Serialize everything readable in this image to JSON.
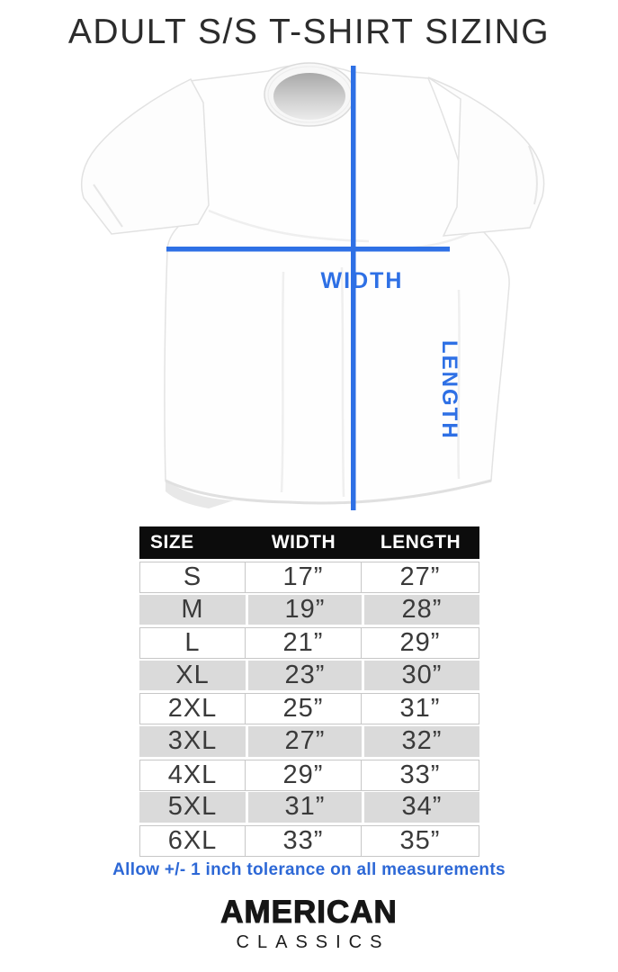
{
  "title": "ADULT S/S T-SHIRT SIZING",
  "diagram": {
    "width_label": "WIDTH",
    "length_label": "LENGTH"
  },
  "size_chart": {
    "columns": [
      "SIZE",
      "WIDTH",
      "LENGTH"
    ],
    "rows": [
      {
        "size": "S",
        "width": "17”",
        "length": "27”"
      },
      {
        "size": "M",
        "width": "19”",
        "length": "28”"
      },
      {
        "size": "L",
        "width": "21”",
        "length": "29”"
      },
      {
        "size": "XL",
        "width": "23”",
        "length": "30”"
      },
      {
        "size": "2XL",
        "width": "25”",
        "length": "31”"
      },
      {
        "size": "3XL",
        "width": "27”",
        "length": "32”"
      },
      {
        "size": "4XL",
        "width": "29”",
        "length": "33”"
      },
      {
        "size": "5XL",
        "width": "31”",
        "length": "34”"
      },
      {
        "size": "6XL",
        "width": "33”",
        "length": "35”"
      }
    ]
  },
  "tolerance_note": "Allow +/- 1 inch tolerance on all measurements",
  "brand": {
    "line1": "AMERICAN",
    "line2": "CLASSICS"
  },
  "colors": {
    "accent": "#2e70e5",
    "table_header_bg": "#0c0c0c",
    "row_stripe": "#dadada",
    "note_color": "#2d68d6",
    "data_text": "#3a3a3a"
  },
  "chart_data": {
    "type": "table",
    "title": "ADULT S/S T-SHIRT SIZING",
    "columns": [
      "SIZE",
      "WIDTH",
      "LENGTH"
    ],
    "rows": [
      [
        "S",
        "17”",
        "27”"
      ],
      [
        "M",
        "19”",
        "28”"
      ],
      [
        "L",
        "21”",
        "29”"
      ],
      [
        "XL",
        "23”",
        "30”"
      ],
      [
        "2XL",
        "25”",
        "31”"
      ],
      [
        "3XL",
        "27”",
        "32”"
      ],
      [
        "4XL",
        "29”",
        "33”"
      ],
      [
        "5XL",
        "31”",
        "34”"
      ],
      [
        "6XL",
        "33”",
        "35”"
      ]
    ],
    "note": "Allow +/- 1 inch tolerance on all measurements"
  }
}
